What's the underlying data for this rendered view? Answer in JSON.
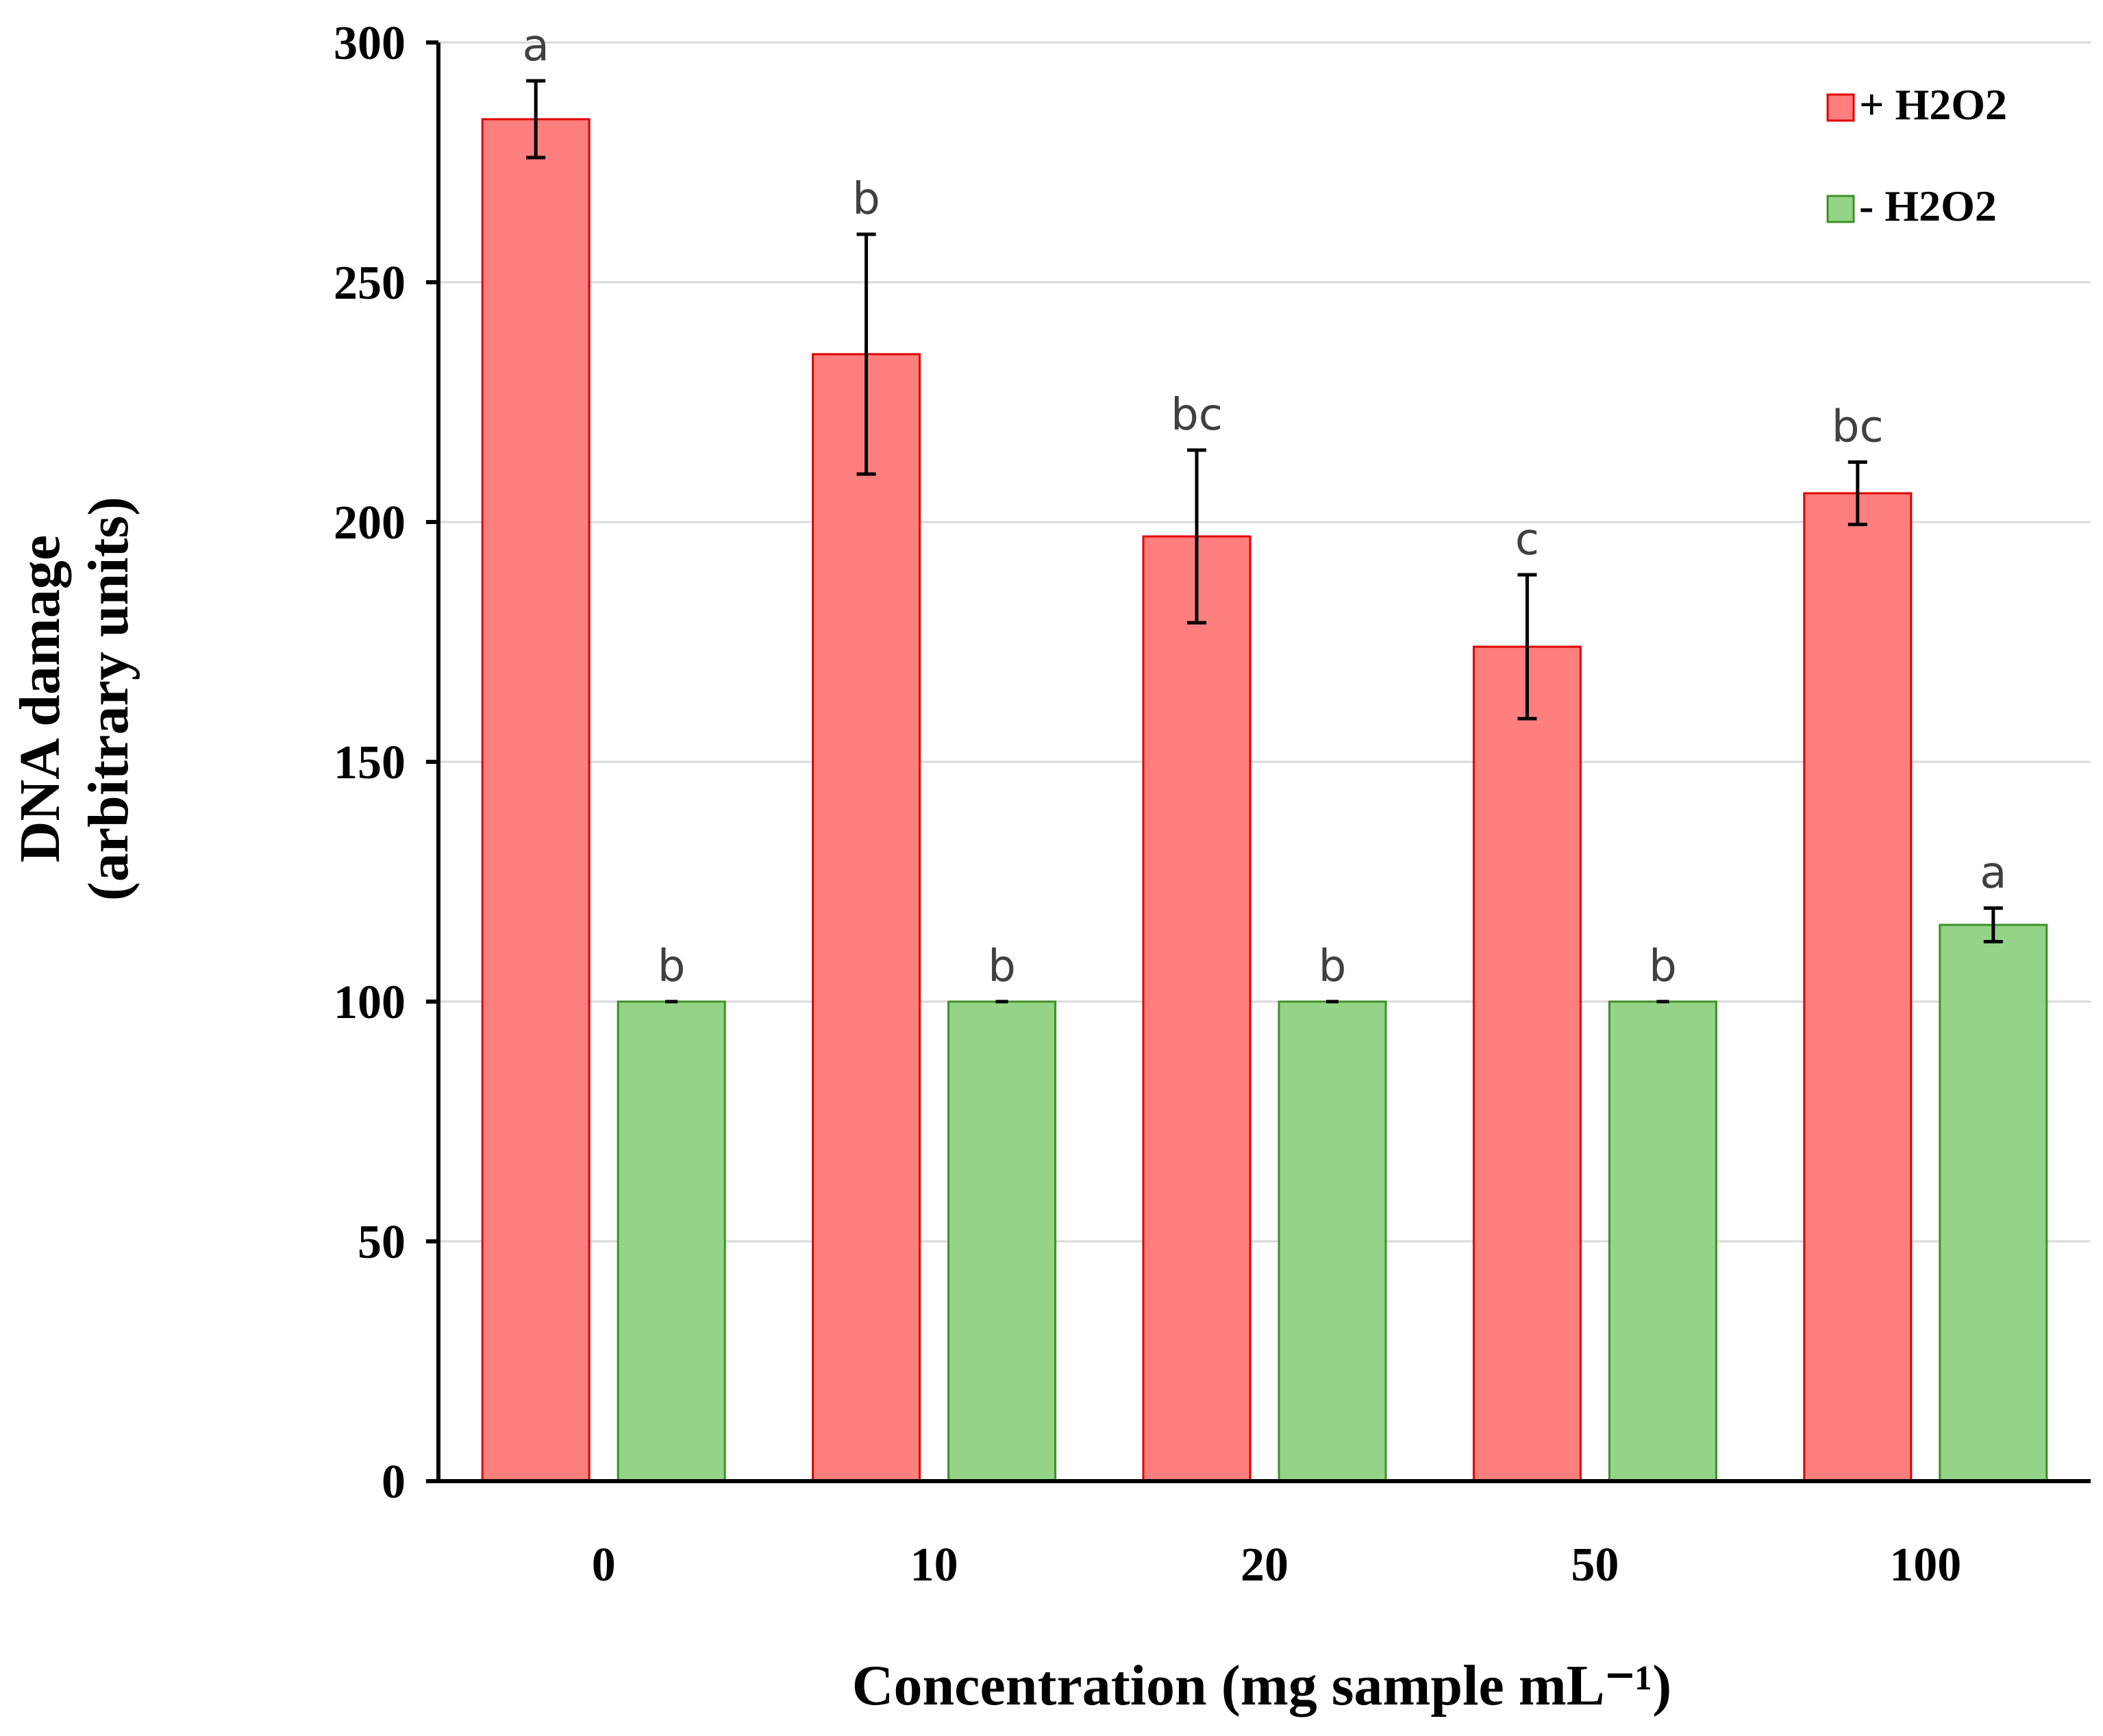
{
  "chart_data": {
    "type": "bar",
    "title": "",
    "xlabel": "Concentration (mg sample mL⁻¹)",
    "ylabel_line1": "DNA damage",
    "ylabel_line2": "(arbitrary units)",
    "ylim": [
      0,
      300
    ],
    "yticks": [
      0,
      50,
      100,
      150,
      200,
      250,
      300
    ],
    "ytick_labels": [
      "0",
      "50",
      "100",
      "150",
      "200",
      "250",
      "300"
    ],
    "grid": true,
    "legend_position": "top-right",
    "categories": [
      "0",
      "10",
      "20",
      "50",
      "100"
    ],
    "series": [
      {
        "name": "+ H2O2",
        "color": "#ff7f7f",
        "edge_color": "#e00000",
        "values": [
          284,
          235,
          197,
          174,
          206
        ],
        "errors": [
          8,
          25,
          18,
          15,
          6.5
        ],
        "labels": [
          "a",
          "b",
          "bc",
          "c",
          "bc"
        ]
      },
      {
        "name": "- H2O2",
        "color": "#94d486",
        "edge_color": "#3f8f2a",
        "values": [
          100,
          100,
          100,
          100,
          116
        ],
        "errors": [
          0,
          0,
          0,
          0,
          3.5
        ],
        "labels": [
          "b",
          "b",
          "b",
          "b",
          "a"
        ]
      }
    ]
  }
}
